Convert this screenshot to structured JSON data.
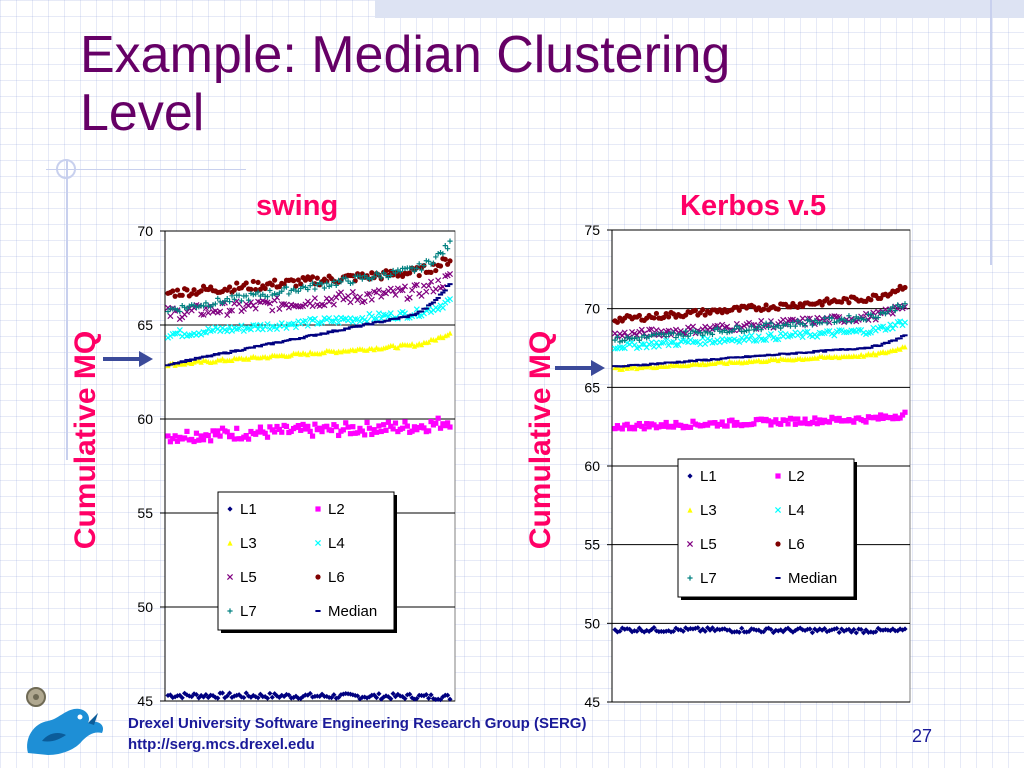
{
  "slide": {
    "title": "Example:  Median Clustering Level",
    "footer_line1": "Drexel University Software Engineering Research Group (SERG)",
    "footer_line2": "http://serg.mcs.drexel.edu",
    "page_number": "27"
  },
  "colors": {
    "title": "#660066",
    "chart_title": "#ff0066",
    "footer": "#1a1a99",
    "arrow": "#3b4a9a"
  },
  "chart_data": [
    {
      "type": "scatter",
      "title": "swing",
      "xlabel": "",
      "ylabel": "Cumulative MQ",
      "ylim": [
        45,
        70
      ],
      "yticks": [
        45,
        50,
        55,
        60,
        65,
        70
      ],
      "grid": true,
      "arrow_at": 63,
      "legend_position": "lower-center",
      "n_points": 120,
      "series": [
        {
          "name": "L1",
          "marker": "diamond",
          "color": "#000080",
          "start": 45.3,
          "end": 45.2,
          "noise": 0.15
        },
        {
          "name": "L2",
          "marker": "square",
          "color": "#ff00ff",
          "start": 59.1,
          "end": 59.9,
          "noise": 0.35
        },
        {
          "name": "L3",
          "marker": "triangle",
          "color": "#ffff00",
          "start": 62.9,
          "end": 64.6,
          "noise": 0.08
        },
        {
          "name": "L4",
          "marker": "x",
          "color": "#00ffff",
          "start": 64.5,
          "end": 66.3,
          "noise": 0.2
        },
        {
          "name": "L5",
          "marker": "x",
          "color": "#800080",
          "start": 65.6,
          "end": 67.5,
          "noise": 0.35
        },
        {
          "name": "L6",
          "marker": "circle",
          "color": "#800000",
          "start": 66.7,
          "end": 68.5,
          "noise": 0.25
        },
        {
          "name": "L7",
          "marker": "plus",
          "color": "#008080",
          "start": 65.8,
          "end": 69.3,
          "noise": 0.2
        },
        {
          "name": "Median",
          "marker": "dash",
          "color": "#000080",
          "start": 62.9,
          "end": 67.2,
          "noise": 0.05
        }
      ]
    },
    {
      "type": "scatter",
      "title": "Kerbos v.5",
      "xlabel": "",
      "ylabel": "Cumulative MQ",
      "ylim": [
        45,
        75
      ],
      "yticks": [
        45,
        50,
        55,
        60,
        65,
        70,
        75
      ],
      "grid": true,
      "arrow_at": 66.5,
      "legend_position": "middle-right",
      "n_points": 120,
      "series": [
        {
          "name": "L1",
          "marker": "diamond",
          "color": "#000080",
          "start": 49.6,
          "end": 49.5,
          "noise": 0.15
        },
        {
          "name": "L2",
          "marker": "square",
          "color": "#ff00ff",
          "start": 62.5,
          "end": 63.3,
          "noise": 0.2
        },
        {
          "name": "L3",
          "marker": "triangle",
          "color": "#ffff00",
          "start": 66.2,
          "end": 67.6,
          "noise": 0.08
        },
        {
          "name": "L4",
          "marker": "x",
          "color": "#00ffff",
          "start": 67.6,
          "end": 69.2,
          "noise": 0.2
        },
        {
          "name": "L5",
          "marker": "x",
          "color": "#800080",
          "start": 68.3,
          "end": 70.2,
          "noise": 0.25
        },
        {
          "name": "L6",
          "marker": "circle",
          "color": "#800000",
          "start": 69.3,
          "end": 71.5,
          "noise": 0.2
        },
        {
          "name": "L7",
          "marker": "plus",
          "color": "#008080",
          "start": 68.0,
          "end": 70.4,
          "noise": 0.2
        },
        {
          "name": "Median",
          "marker": "dash",
          "color": "#000080",
          "start": 66.3,
          "end": 68.3,
          "noise": 0.05
        }
      ]
    }
  ]
}
